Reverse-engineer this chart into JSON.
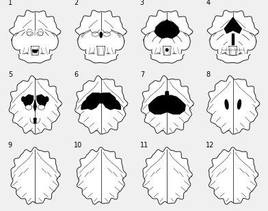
{
  "title": "",
  "grid_rows": 3,
  "grid_cols": 4,
  "figure_width": 3.92,
  "figure_height": 3.08,
  "dpi": 100,
  "background_color": "#f0f0f0",
  "brain_outline_color": "#1a1a1a",
  "fill_color": "#000000",
  "label_color": "#000000",
  "label_fontsize": 7,
  "brain_linewidth": 0.7,
  "labels": [
    "1",
    "2",
    "3",
    "4",
    "5",
    "6",
    "7",
    "8",
    "9",
    "10",
    "11",
    "12"
  ]
}
